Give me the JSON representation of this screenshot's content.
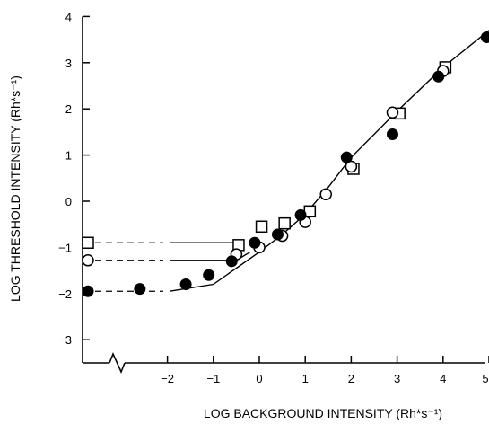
{
  "chart_data": {
    "type": "scatter",
    "xlabel": "LOG BACKGROUND INTENSITY (Rh*s⁻¹)",
    "ylabel": "LOG THRESHOLD INTENSITY (Rh*s⁻¹)",
    "xlim": [
      -3,
      5
    ],
    "ylim": [
      -3.5,
      4
    ],
    "x_ticks": [
      -2,
      -1,
      0,
      1,
      2,
      3,
      4,
      5
    ],
    "y_ticks": [
      -3,
      -2,
      -1,
      0,
      1,
      2,
      3,
      4
    ],
    "x_axis_break": true,
    "grid": false,
    "dark_adapted_points": [
      {
        "marker": "square-open",
        "y": -0.9
      },
      {
        "marker": "circle-open",
        "y": -1.28
      },
      {
        "marker": "circle-filled",
        "y": -1.95
      }
    ],
    "series": [
      {
        "marker": "circle-filled",
        "points": [
          [
            -2.6,
            -1.9
          ],
          [
            -1.6,
            -1.8
          ],
          [
            -1.1,
            -1.6
          ],
          [
            -0.6,
            -1.3
          ],
          [
            -0.1,
            -0.9
          ],
          [
            0.4,
            -0.72
          ],
          [
            0.9,
            -0.3
          ],
          [
            1.9,
            0.95
          ],
          [
            2.9,
            1.45
          ],
          [
            3.9,
            2.7
          ],
          [
            4.95,
            3.55
          ]
        ]
      },
      {
        "marker": "circle-open",
        "points": [
          [
            -0.5,
            -1.15
          ],
          [
            0.0,
            -1.0
          ],
          [
            0.5,
            -0.75
          ],
          [
            1.0,
            -0.45
          ],
          [
            1.45,
            0.15
          ],
          [
            2.0,
            0.75
          ],
          [
            2.9,
            1.92
          ],
          [
            4.0,
            2.82
          ]
        ]
      },
      {
        "marker": "square-open",
        "points": [
          [
            -0.45,
            -0.95
          ],
          [
            0.05,
            -0.55
          ],
          [
            0.55,
            -0.48
          ],
          [
            1.1,
            -0.22
          ],
          [
            2.05,
            0.7
          ],
          [
            3.05,
            1.9
          ],
          [
            4.05,
            2.9
          ]
        ]
      }
    ],
    "fit_curves": [
      {
        "style": "solid",
        "points": [
          [
            -1.95,
            -1.95
          ],
          [
            -1.0,
            -1.8
          ],
          [
            0.0,
            -1.1
          ],
          [
            0.5,
            -0.72
          ],
          [
            1.0,
            -0.28
          ],
          [
            1.5,
            0.3
          ],
          [
            2.0,
            0.95
          ],
          [
            3.0,
            1.95
          ],
          [
            4.0,
            2.9
          ],
          [
            5.0,
            3.7
          ]
        ]
      },
      {
        "style": "solid",
        "points": [
          [
            -1.95,
            -1.28
          ],
          [
            -0.5,
            -1.28
          ],
          [
            -0.2,
            -1.1
          ]
        ]
      },
      {
        "style": "solid",
        "points": [
          [
            -1.95,
            -0.9
          ],
          [
            -0.45,
            -0.9
          ]
        ]
      }
    ],
    "dashed_links": [
      {
        "y": -0.9
      },
      {
        "y": -1.28
      },
      {
        "y": -1.95
      }
    ]
  }
}
